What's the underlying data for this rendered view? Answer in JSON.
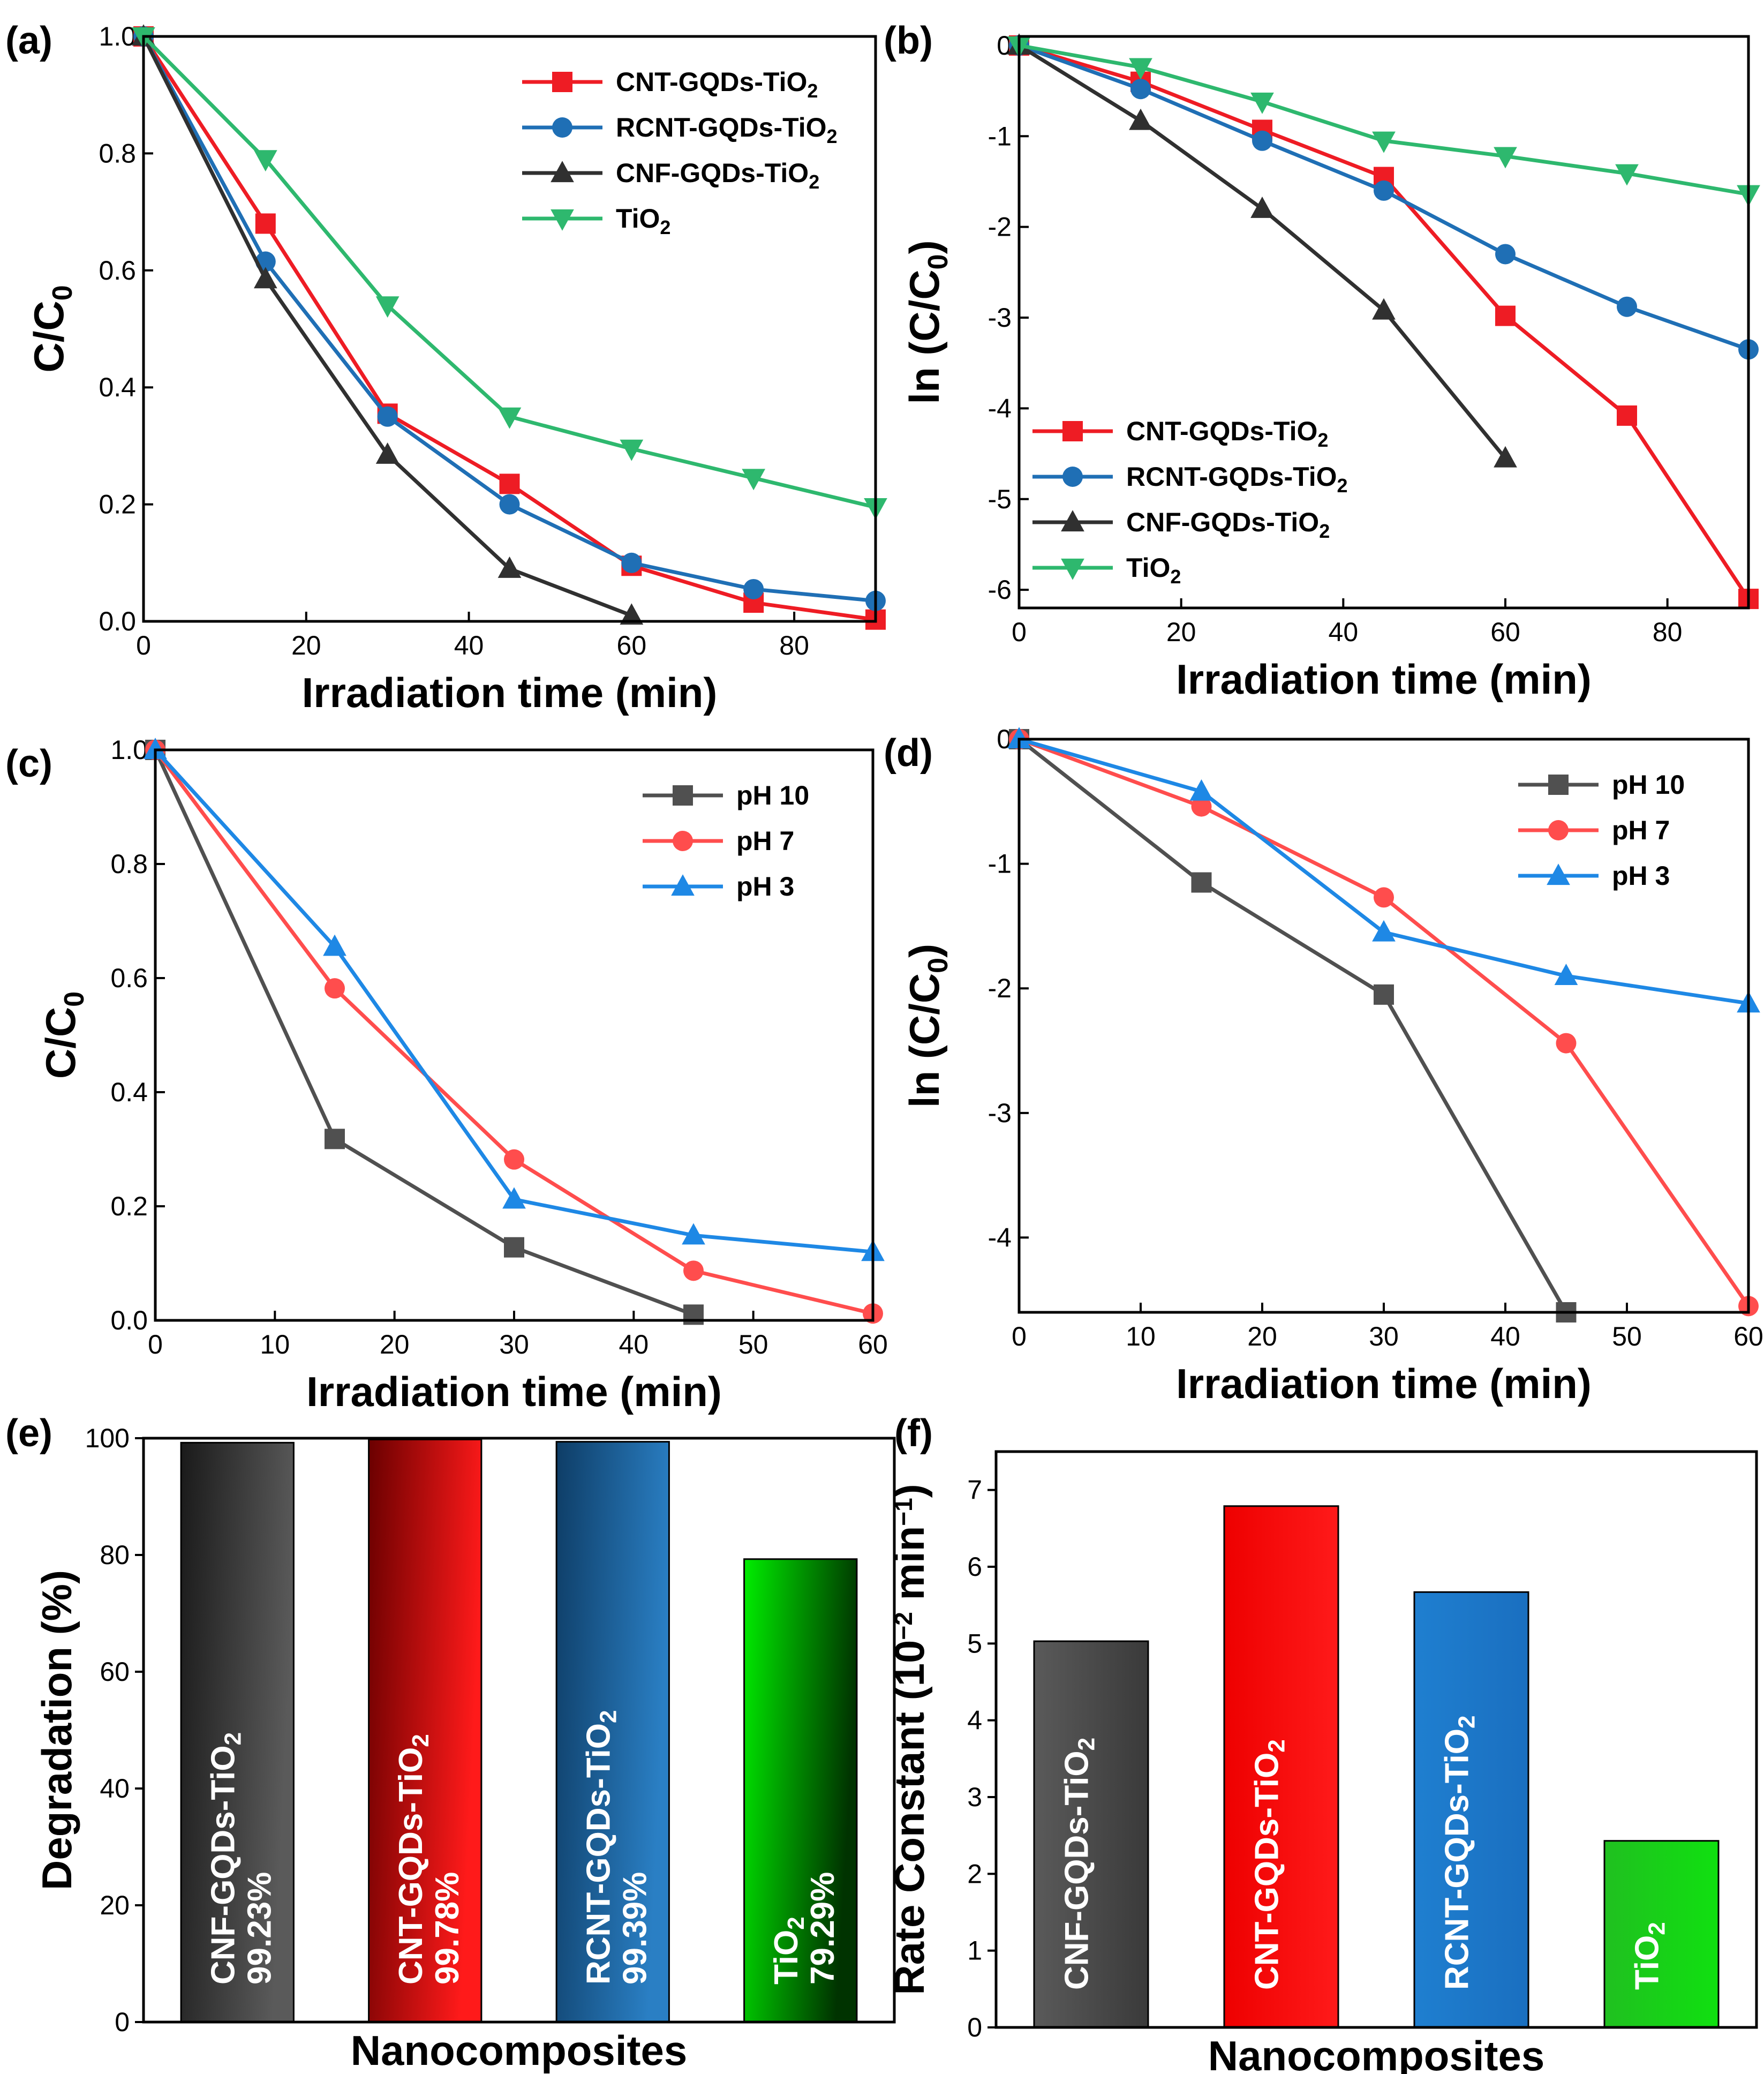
{
  "figure": {
    "panels": [
      "(a)",
      "(b)",
      "(c)",
      "(d)",
      "(e)",
      "(f)"
    ]
  },
  "chart_data": [
    {
      "id": "a",
      "panel_label": "(a)",
      "type": "line",
      "xlabel": "Irradiation time (min)",
      "ylabel_main": "C/C",
      "ylabel_sub": "0",
      "xlim": [
        0,
        90
      ],
      "ylim": [
        0,
        1.0
      ],
      "xticks": [
        0,
        20,
        40,
        60,
        80
      ],
      "yticks": [
        0.0,
        0.2,
        0.4,
        0.6,
        0.8,
        1.0
      ],
      "ytick_labels": [
        "0.0",
        "0.2",
        "0.4",
        "0.6",
        "0.8",
        "1.0"
      ],
      "legend_position": "top-right",
      "series": [
        {
          "name": "CNT-GQDs-TiO",
          "sub": "2",
          "color": "#ee1c24",
          "marker": "square",
          "x": [
            0,
            15,
            30,
            45,
            60,
            75,
            90
          ],
          "y": [
            1.0,
            0.68,
            0.355,
            0.235,
            0.095,
            0.032,
            0.003
          ]
        },
        {
          "name": "RCNT-GQDs-TiO",
          "sub": "2",
          "color": "#1f6fb5",
          "marker": "circle",
          "x": [
            0,
            15,
            30,
            45,
            60,
            75,
            90
          ],
          "y": [
            1.0,
            0.615,
            0.35,
            0.2,
            0.1,
            0.055,
            0.035
          ]
        },
        {
          "name": "CNF-GQDs-TiO",
          "sub": "2",
          "color": "#303030",
          "marker": "triangle",
          "x": [
            0,
            15,
            30,
            45,
            60
          ],
          "y": [
            1.0,
            0.585,
            0.285,
            0.09,
            0.01
          ]
        },
        {
          "name": "TiO",
          "sub": "2",
          "color": "#2eb86e",
          "marker": "triangle-down",
          "x": [
            0,
            15,
            30,
            45,
            60,
            75,
            90
          ],
          "y": [
            1.0,
            0.79,
            0.54,
            0.35,
            0.295,
            0.245,
            0.195
          ]
        }
      ]
    },
    {
      "id": "b",
      "panel_label": "(b)",
      "type": "line",
      "xlabel": "Irradiation time (min)",
      "ylabel_main": "ln (C/C",
      "ylabel_sub": "0",
      "ylabel_end": ")",
      "xlim": [
        0,
        90
      ],
      "ylim": [
        -6.2,
        0.1
      ],
      "xticks": [
        0,
        20,
        40,
        60,
        80
      ],
      "yticks": [
        0,
        -1,
        -2,
        -3,
        -4,
        -5,
        -6
      ],
      "ytick_labels": [
        "0",
        "-1",
        "-2",
        "-3",
        "-4",
        "-5",
        "-6"
      ],
      "legend_position": "bottom-left",
      "series": [
        {
          "name": "CNT-GQDs-TiO",
          "sub": "2",
          "color": "#ee1c24",
          "marker": "square",
          "x": [
            0,
            15,
            30,
            45,
            60,
            75,
            90
          ],
          "y": [
            0,
            -0.4,
            -0.93,
            -1.45,
            -2.98,
            -4.08,
            -6.1
          ]
        },
        {
          "name": "RCNT-GQDs-TiO",
          "sub": "2",
          "color": "#1f6fb5",
          "marker": "circle",
          "x": [
            0,
            15,
            30,
            45,
            60,
            75,
            90
          ],
          "y": [
            0,
            -0.48,
            -1.05,
            -1.6,
            -2.3,
            -2.88,
            -3.35
          ]
        },
        {
          "name": "CNF-GQDs-TiO",
          "sub": "2",
          "color": "#303030",
          "marker": "triangle",
          "x": [
            0,
            15,
            30,
            45,
            60
          ],
          "y": [
            0,
            -0.83,
            -1.8,
            -2.92,
            -4.55
          ]
        },
        {
          "name": "TiO",
          "sub": "2",
          "color": "#2eb86e",
          "marker": "triangle-down",
          "x": [
            0,
            15,
            30,
            45,
            60,
            75,
            90
          ],
          "y": [
            0,
            -0.24,
            -0.62,
            -1.05,
            -1.22,
            -1.41,
            -1.64
          ]
        }
      ]
    },
    {
      "id": "c",
      "panel_label": "(c)",
      "type": "line",
      "xlabel": "Irradiation time (min)",
      "ylabel_main": "C/C",
      "ylabel_sub": "0",
      "xlim": [
        0,
        60
      ],
      "ylim": [
        0,
        1.0
      ],
      "xticks": [
        0,
        10,
        20,
        30,
        40,
        50,
        60
      ],
      "yticks": [
        0.0,
        0.2,
        0.4,
        0.6,
        0.8,
        1.0
      ],
      "ytick_labels": [
        "0.0",
        "0.2",
        "0.4",
        "0.6",
        "0.8",
        "1.0"
      ],
      "legend_position": "top-right",
      "series": [
        {
          "name": "pH 10",
          "sub": "",
          "color": "#505050",
          "marker": "square",
          "x": [
            0,
            15,
            30,
            45
          ],
          "y": [
            1.0,
            0.318,
            0.128,
            0.01
          ]
        },
        {
          "name": "pH 7",
          "sub": "",
          "color": "#ff4d4d",
          "marker": "circle",
          "x": [
            0,
            15,
            30,
            45,
            60
          ],
          "y": [
            1.0,
            0.582,
            0.282,
            0.087,
            0.012
          ]
        },
        {
          "name": "pH 3",
          "sub": "",
          "color": "#1e88e5",
          "marker": "triangle",
          "x": [
            0,
            15,
            30,
            45,
            60
          ],
          "y": [
            1.0,
            0.655,
            0.212,
            0.149,
            0.12
          ]
        }
      ]
    },
    {
      "id": "d",
      "panel_label": "(d)",
      "type": "line",
      "xlabel": "Irradiation time (min)",
      "ylabel_main": "ln (C/C",
      "ylabel_sub": "0",
      "ylabel_end": ")",
      "xlim": [
        0,
        60
      ],
      "ylim": [
        -4.6,
        0
      ],
      "xticks": [
        0,
        10,
        20,
        30,
        40,
        50,
        60
      ],
      "yticks": [
        0,
        -1,
        -2,
        -3,
        -4
      ],
      "ytick_labels": [
        "0",
        "-1",
        "-2",
        "-3",
        "-4"
      ],
      "legend_position": "top-right",
      "series": [
        {
          "name": "pH 10",
          "sub": "",
          "color": "#505050",
          "marker": "square",
          "x": [
            0,
            15,
            30,
            45
          ],
          "y": [
            0,
            -1.15,
            -2.05,
            -4.6
          ]
        },
        {
          "name": "pH 7",
          "sub": "",
          "color": "#ff4d4d",
          "marker": "circle",
          "x": [
            0,
            15,
            30,
            45,
            60
          ],
          "y": [
            0,
            -0.54,
            -1.27,
            -2.44,
            -4.55
          ]
        },
        {
          "name": "pH 3",
          "sub": "",
          "color": "#1e88e5",
          "marker": "triangle",
          "x": [
            0,
            15,
            30,
            45,
            60
          ],
          "y": [
            0,
            -0.42,
            -1.55,
            -1.9,
            -2.12
          ]
        }
      ]
    },
    {
      "id": "e",
      "panel_label": "(e)",
      "type": "bar",
      "xlabel": "Nanocomposites",
      "ylabel_main": "Degradation (%)",
      "ylim": [
        0,
        100
      ],
      "yticks": [
        0,
        20,
        40,
        60,
        80,
        100
      ],
      "ytick_labels": [
        "0",
        "20",
        "40",
        "60",
        "80",
        "100"
      ],
      "categories": [
        "CNF-GQDs-TiO2",
        "CNT-GQDs-TiO2",
        "RCNT-GQDs-TiO2",
        "TiO2"
      ],
      "bar_labels": [
        {
          "name": "CNF-GQDs-TiO",
          "sub": "2"
        },
        {
          "name": "CNT-GQDs-TiO",
          "sub": "2"
        },
        {
          "name": "RCNT-GQDs-TiO",
          "sub": "2"
        },
        {
          "name": "TiO",
          "sub": "2"
        }
      ],
      "values": [
        99.23,
        99.78,
        99.39,
        79.29
      ],
      "value_labels": [
        "99.23%",
        "99.78%",
        "99.39%",
        "79.29%"
      ],
      "colors": [
        [
          "#1a1a1a",
          "#5a5a5a"
        ],
        [
          "#6a0000",
          "#ff1a1a"
        ],
        [
          "#0e3d66",
          "#2a7fc4"
        ],
        [
          "#00ee00",
          "#003300"
        ]
      ]
    },
    {
      "id": "f",
      "panel_label": "(f)",
      "type": "bar",
      "xlabel": "Nanocomposites",
      "ylabel_main": "Rate Constant (10",
      "ylabel_sup1": "−2",
      "ylabel_mid": " min",
      "ylabel_sup2": "−1",
      "ylabel_end": ")",
      "ylim": [
        0,
        7.5
      ],
      "yticks": [
        0,
        1,
        2,
        3,
        4,
        5,
        6,
        7
      ],
      "ytick_labels": [
        "0",
        "1",
        "2",
        "3",
        "4",
        "5",
        "6",
        "7"
      ],
      "categories": [
        "CNF-GQDs-TiO2",
        "CNT-GQDs-TiO2",
        "RCNT-GQDs-TiO2",
        "TiO2"
      ],
      "bar_labels": [
        {
          "name": "CNF-GQDs-TiO",
          "sub": "2"
        },
        {
          "name": "CNT-GQDs-TiO",
          "sub": "2"
        },
        {
          "name": "RCNT-GQDs-TiO",
          "sub": "2"
        },
        {
          "name": "TiO",
          "sub": "2"
        }
      ],
      "values": [
        5.03,
        6.79,
        5.67,
        2.43
      ],
      "colors": [
        [
          "#5a5a5a",
          "#3a3a3a"
        ],
        [
          "#ee0000",
          "#ff1a1a"
        ],
        [
          "#1f7fd0",
          "#1a6fc0"
        ],
        [
          "#20c020",
          "#10e010"
        ]
      ]
    }
  ]
}
